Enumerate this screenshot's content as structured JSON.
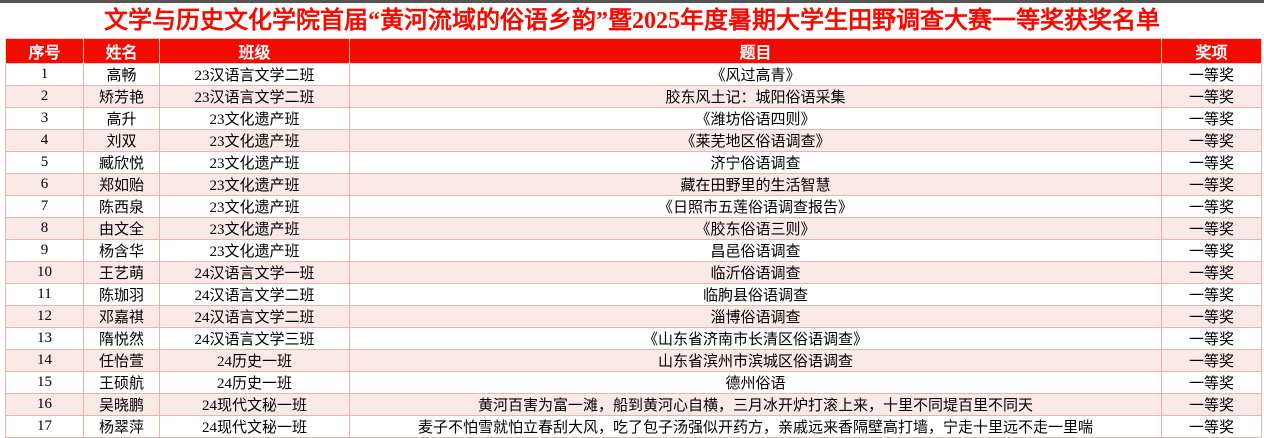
{
  "title": "文学与历史文化学院首届“黄河流域的俗语乡韵”暨2025年度暑期大学生田野调查大赛一等奖获奖名单",
  "colors": {
    "accent_red": "#f30b00",
    "stripe_pink": "#fbe9e7",
    "border_pink": "#eab4ae",
    "header_text": "#ffffff",
    "body_text": "#000000"
  },
  "table": {
    "headers": [
      "序号",
      "姓名",
      "班级",
      "题目",
      "奖项"
    ],
    "rows": [
      [
        "1",
        "高畅",
        "23汉语言文学二班",
        "《风过高青》",
        "一等奖"
      ],
      [
        "2",
        "矫芳艳",
        "23汉语言文学二班",
        "胶东风土记：城阳俗语采集",
        "一等奖"
      ],
      [
        "3",
        "高升",
        "23文化遗产班",
        "《潍坊俗语四则》",
        "一等奖"
      ],
      [
        "4",
        "刘双",
        "23文化遗产班",
        "《莱芜地区俗语调查》",
        "一等奖"
      ],
      [
        "5",
        "臧欣悦",
        "23文化遗产班",
        "济宁俗语调查",
        "一等奖"
      ],
      [
        "6",
        "郑如贻",
        "23文化遗产班",
        "藏在田野里的生活智慧",
        "一等奖"
      ],
      [
        "7",
        "陈西泉",
        "23文化遗产班",
        "《日照市五莲俗语调查报告》",
        "一等奖"
      ],
      [
        "8",
        "由文全",
        "23文化遗产班",
        "《胶东俗语三则》",
        "一等奖"
      ],
      [
        "9",
        "杨含华",
        "23文化遗产班",
        "昌邑俗语调查",
        "一等奖"
      ],
      [
        "10",
        "王艺萌",
        "24汉语言文学一班",
        "临沂俗语调查",
        "一等奖"
      ],
      [
        "11",
        "陈珈羽",
        "24汉语言文学二班",
        "临朐县俗语调查",
        "一等奖"
      ],
      [
        "12",
        "邓嘉祺",
        "24汉语言文学二班",
        "淄博俗语调查",
        "一等奖"
      ],
      [
        "13",
        "隋悦然",
        "24汉语言文学三班",
        "《山东省济南市长清区俗语调查》",
        "一等奖"
      ],
      [
        "14",
        "任怡萱",
        "24历史一班",
        "山东省滨州市滨城区俗语调查",
        "一等奖"
      ],
      [
        "15",
        "王硕航",
        "24历史一班",
        "德州俗语",
        "一等奖"
      ],
      [
        "16",
        "吴晓鹏",
        "24现代文秘一班",
        "黄河百害为富一滩，船到黄河心自横，三月冰开炉打滚上来，十里不同堤百里不同天",
        "一等奖"
      ],
      [
        "17",
        "杨翠萍",
        "24现代文秘一班",
        "麦子不怕雪就怕立春刮大风，吃了包子汤强似开药方，亲戚远来香隔壁高打墙，宁走十里远不走一里喘",
        "一等奖"
      ]
    ]
  }
}
